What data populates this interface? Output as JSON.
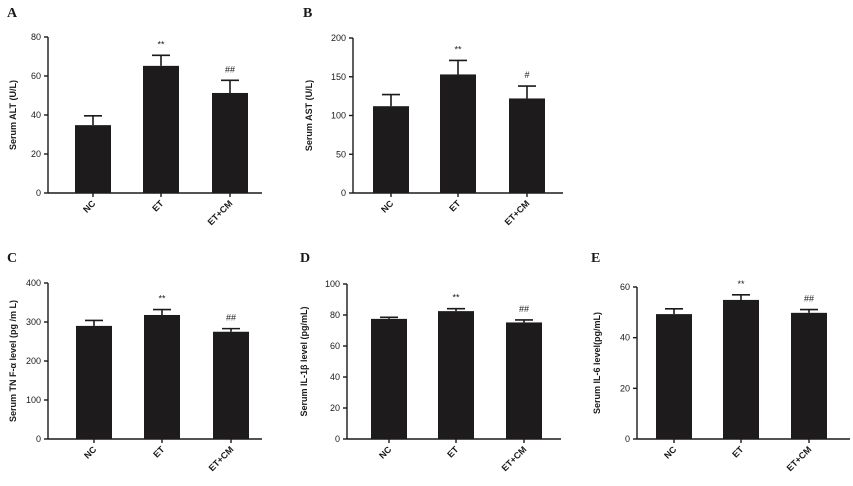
{
  "chart_data": [
    {
      "panel": "A",
      "type": "bar",
      "categories": [
        "NC",
        "ET",
        "ET+CM"
      ],
      "values": [
        34.8,
        65.2,
        51.3
      ],
      "errors": [
        4.8,
        5.4,
        6.5
      ],
      "significance": [
        "",
        "**",
        "##"
      ],
      "ylabel": "Serum ALT (U/L)",
      "ylim": [
        0,
        80
      ],
      "yticks": [
        "0",
        "20",
        "40",
        "60",
        "80"
      ]
    },
    {
      "panel": "B",
      "type": "bar",
      "categories": [
        "NC",
        "ET",
        "ET+CM"
      ],
      "values": [
        112,
        153,
        122
      ],
      "errors": [
        15,
        18,
        16
      ],
      "significance": [
        "",
        "**",
        "#"
      ],
      "ylabel": "Serum AST (U/L)",
      "ylim": [
        0,
        200
      ],
      "yticks": [
        "0",
        "50",
        "100",
        "150",
        "200"
      ]
    },
    {
      "panel": "C",
      "type": "bar",
      "categories": [
        "NC",
        "ET",
        "ET+CM"
      ],
      "values": [
        290,
        318,
        275
      ],
      "errors": [
        14,
        14,
        8
      ],
      "significance": [
        "",
        "**",
        "##"
      ],
      "ylabel": "Serum TN F-α level (pg /m L)",
      "ylim": [
        0,
        400
      ],
      "yticks": [
        "0",
        "100",
        "200",
        "300",
        "400"
      ]
    },
    {
      "panel": "D",
      "type": "bar",
      "categories": [
        "NC",
        "ET",
        "ET+CM"
      ],
      "values": [
        77.5,
        82.5,
        75.2
      ],
      "errors": [
        1.0,
        1.6,
        1.6
      ],
      "significance": [
        "",
        "**",
        "##"
      ],
      "ylabel": "Serum IL-1β level (pg/mL)",
      "ylim": [
        0,
        100
      ],
      "yticks": [
        "0",
        "20",
        "40",
        "60",
        "80",
        "100"
      ]
    },
    {
      "panel": "E",
      "type": "bar",
      "categories": [
        "NC",
        "ET",
        "ET+CM"
      ],
      "values": [
        49.3,
        54.9,
        49.8
      ],
      "errors": [
        2.1,
        2.0,
        1.3
      ],
      "significance": [
        "",
        "**",
        "##"
      ],
      "ylabel": "Serum IL-6 level(pg/mL)",
      "ylim": [
        0,
        60
      ],
      "yticks": [
        "0",
        "20",
        "40",
        "60"
      ]
    }
  ]
}
